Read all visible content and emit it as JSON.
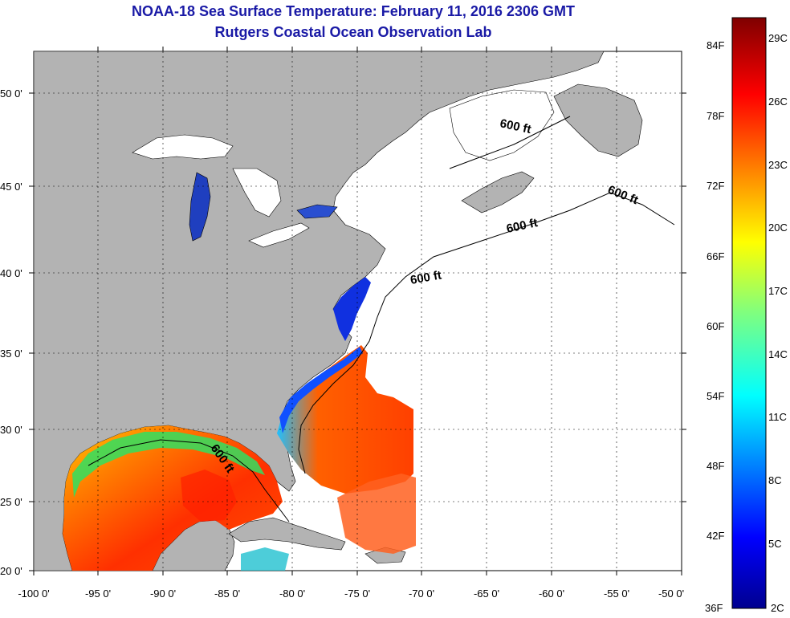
{
  "title": "NOAA-18 Sea Surface Temperature:  February 11, 2016 2306 GMT",
  "subtitle": "Rutgers Coastal Ocean Observation Lab",
  "lat_ticks": [
    "50 0'",
    "45 0'",
    "40 0'",
    "35 0'",
    "30 0'",
    "25 0'",
    "20 0'"
  ],
  "lon_ticks": [
    "-100 0'",
    "-95 0'",
    "-90 0'",
    "-85 0'",
    "-80 0'",
    "-75 0'",
    "-70 0'",
    "-65 0'",
    "-60 0'",
    "-55 0'",
    "-50 0'"
  ],
  "depth_labels": [
    "600 ft",
    "600 ft",
    "600 ft",
    "600 ft",
    "600 ft"
  ],
  "colorbar": {
    "fahrenheit": [
      "84F",
      "78F",
      "72F",
      "66F",
      "60F",
      "54F",
      "48F",
      "42F",
      "36F"
    ],
    "celsius": [
      "29C",
      "26C",
      "23C",
      "20C",
      "17C",
      "14C",
      "11C",
      "8C",
      "5C",
      "2C"
    ]
  },
  "colors": {
    "land": "#b3b3b3",
    "title": "#1a1aa6",
    "water_no_data": "#ffffff"
  }
}
